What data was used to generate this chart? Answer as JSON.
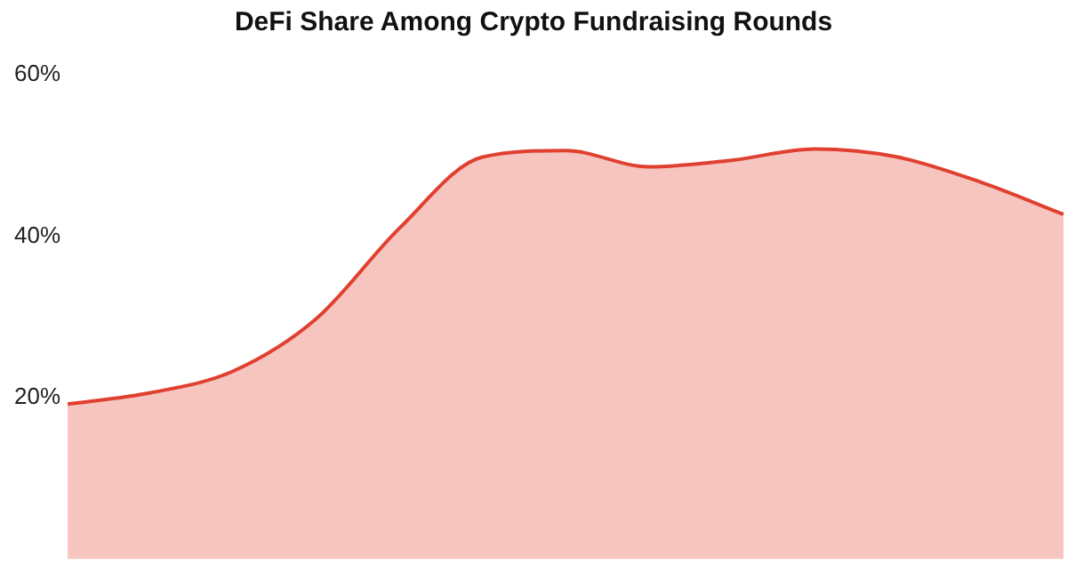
{
  "chart_data": {
    "type": "area",
    "title": "DeFi Share Among Crypto Fundraising Rounds",
    "categories": [
      null,
      null,
      null,
      null,
      null,
      null,
      null,
      null,
      null,
      null,
      null,
      null,
      null
    ],
    "series": [
      {
        "color": "#e0402f",
        "values": [
          19.2,
          20.6,
          23.3,
          29.8,
          41,
          49.8,
          50.6,
          48.6,
          49.4,
          50.8,
          49.8,
          46.7,
          42.7
        ]
      }
    ],
    "ylim": [
      0,
      60
    ],
    "yticks": [
      {
        "value": 20,
        "label": "20%"
      },
      {
        "value": 40,
        "label": "40%"
      },
      {
        "value": 60,
        "label": "60%"
      }
    ],
    "tick_labels": "y",
    "grid": false,
    "legend": false
  }
}
